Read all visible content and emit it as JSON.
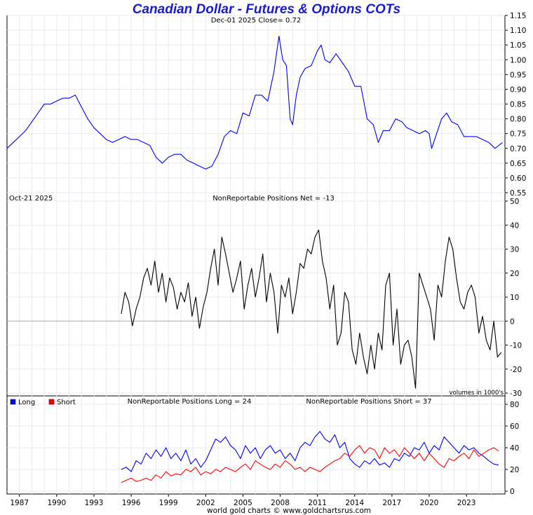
{
  "title": "Canadian Dollar - Futures & Options COTs",
  "footer": "world gold charts © www.goldchartsrus.com",
  "colors": {
    "title": "#1a1ad6",
    "price": "#0000ff",
    "net": "#000000",
    "long": "#0000ff",
    "short": "#ff0000",
    "grid": "#e6eaf0"
  },
  "x_axis_labels": [
    "1987",
    "1990",
    "1993",
    "1996",
    "1999",
    "2002",
    "2005",
    "2008",
    "2011",
    "2014",
    "2017",
    "2020",
    "2023"
  ],
  "chart_data": [
    {
      "type": "line",
      "panel": "price",
      "header": "Dec-01  2025   Close= 0.72",
      "ylim": [
        0.55,
        1.15
      ],
      "yticks": [
        "1.15",
        "1.10",
        "1.05",
        "1.00",
        "0.95",
        "0.90",
        "0.85",
        "0.80",
        "0.75",
        "0.70",
        "0.65",
        "0.60",
        "0.55"
      ],
      "series": [
        {
          "x": [
            1986.0,
            1986.5,
            1987.0,
            1987.5,
            1988.0,
            1988.5,
            1989.0,
            1989.5,
            1990.0,
            1990.5,
            1991.0,
            1991.5,
            1992.0,
            1992.5,
            1993.0,
            1993.5,
            1994.0,
            1994.5,
            1995.0,
            1995.5,
            1996.0,
            1996.5,
            1997.0,
            1997.5,
            1998.0,
            1998.5,
            1999.0,
            1999.5,
            2000.0,
            2000.5,
            2001.0,
            2001.5,
            2002.0,
            2002.5,
            2003.0,
            2003.5,
            2004.0,
            2004.5,
            2005.0,
            2005.5,
            2006.0,
            2006.5,
            2007.0,
            2007.5,
            2007.9,
            2008.2,
            2008.5,
            2008.8,
            2009.0,
            2009.3,
            2009.6,
            2010.0,
            2010.5,
            2011.0,
            2011.3,
            2011.6,
            2012.0,
            2012.5,
            2013.0,
            2013.5,
            2014.0,
            2014.5,
            2015.0,
            2015.5,
            2015.9,
            2016.3,
            2016.8,
            2017.3,
            2017.8,
            2018.2,
            2018.7,
            2019.2,
            2019.7,
            2020.0,
            2020.2,
            2020.6,
            2021.0,
            2021.4,
            2021.8,
            2022.3,
            2022.8,
            2023.3,
            2023.8,
            2024.3,
            2024.8,
            2025.3,
            2025.9
          ],
          "values": [
            0.7,
            0.72,
            0.74,
            0.76,
            0.79,
            0.82,
            0.85,
            0.85,
            0.86,
            0.87,
            0.87,
            0.88,
            0.84,
            0.8,
            0.77,
            0.75,
            0.73,
            0.72,
            0.73,
            0.74,
            0.73,
            0.73,
            0.72,
            0.71,
            0.67,
            0.65,
            0.67,
            0.68,
            0.68,
            0.66,
            0.65,
            0.64,
            0.63,
            0.64,
            0.68,
            0.74,
            0.76,
            0.75,
            0.82,
            0.81,
            0.88,
            0.88,
            0.86,
            0.96,
            1.08,
            1.0,
            0.98,
            0.8,
            0.78,
            0.88,
            0.94,
            0.97,
            0.98,
            1.03,
            1.05,
            1.0,
            0.99,
            1.02,
            0.99,
            0.96,
            0.91,
            0.91,
            0.8,
            0.78,
            0.72,
            0.76,
            0.76,
            0.8,
            0.79,
            0.77,
            0.76,
            0.75,
            0.76,
            0.75,
            0.7,
            0.75,
            0.8,
            0.82,
            0.79,
            0.78,
            0.74,
            0.74,
            0.74,
            0.73,
            0.72,
            0.7,
            0.72
          ],
          "color": "#0000ff"
        }
      ]
    },
    {
      "type": "line",
      "panel": "net",
      "header_left": "Oct-21  2025",
      "header_center": "NonReportable Positions Net = -13",
      "note": "volumes in 1000's",
      "ylim": [
        -30,
        50
      ],
      "yticks": [
        "50",
        "40",
        "30",
        "20",
        "10",
        "0",
        "-10",
        "-20",
        "-30"
      ],
      "series": [
        {
          "x": [
            1995.2,
            1995.5,
            1995.8,
            1996.1,
            1996.4,
            1996.7,
            1997.0,
            1997.3,
            1997.6,
            1997.9,
            1998.2,
            1998.5,
            1998.8,
            1999.1,
            1999.4,
            1999.7,
            2000.0,
            2000.3,
            2000.6,
            2000.9,
            2001.2,
            2001.5,
            2001.8,
            2002.1,
            2002.4,
            2002.7,
            2003.0,
            2003.3,
            2003.6,
            2003.9,
            2004.2,
            2004.5,
            2004.8,
            2005.1,
            2005.4,
            2005.7,
            2006.0,
            2006.3,
            2006.6,
            2006.9,
            2007.2,
            2007.5,
            2007.8,
            2008.1,
            2008.4,
            2008.7,
            2009.0,
            2009.3,
            2009.6,
            2009.9,
            2010.2,
            2010.5,
            2010.8,
            2011.1,
            2011.4,
            2011.7,
            2012.0,
            2012.3,
            2012.6,
            2012.9,
            2013.2,
            2013.5,
            2013.8,
            2014.1,
            2014.4,
            2014.7,
            2015.0,
            2015.3,
            2015.6,
            2015.9,
            2016.2,
            2016.5,
            2016.8,
            2017.1,
            2017.4,
            2017.7,
            2018.0,
            2018.3,
            2018.6,
            2018.9,
            2019.2,
            2019.5,
            2019.8,
            2020.1,
            2020.4,
            2020.7,
            2021.0,
            2021.3,
            2021.6,
            2021.9,
            2022.2,
            2022.5,
            2022.8,
            2023.1,
            2023.4,
            2023.7,
            2024.0,
            2024.3,
            2024.6,
            2024.9,
            2025.2,
            2025.5,
            2025.8
          ],
          "values": [
            3,
            12,
            8,
            -2,
            5,
            10,
            18,
            22,
            15,
            25,
            12,
            20,
            8,
            18,
            14,
            5,
            12,
            8,
            16,
            2,
            10,
            -3,
            6,
            12,
            22,
            30,
            15,
            35,
            28,
            20,
            12,
            18,
            25,
            5,
            15,
            22,
            10,
            18,
            28,
            8,
            20,
            12,
            -5,
            15,
            10,
            18,
            3,
            12,
            24,
            22,
            30,
            28,
            35,
            38,
            25,
            18,
            5,
            15,
            -10,
            -5,
            12,
            8,
            -12,
            -18,
            -5,
            -15,
            -22,
            -10,
            -20,
            -5,
            -12,
            15,
            20,
            -10,
            5,
            -18,
            -10,
            -8,
            -15,
            -28,
            20,
            15,
            10,
            5,
            -8,
            15,
            10,
            25,
            35,
            30,
            18,
            8,
            5,
            12,
            15,
            10,
            -5,
            2,
            -8,
            -12,
            0,
            -15,
            -13
          ]
        }
      ]
    },
    {
      "type": "line",
      "panel": "long_short",
      "legend": [
        "Long",
        "Short"
      ],
      "header_long": "NonReportable Positions Long = 24",
      "header_short": "NonReportable Positions Short = 37",
      "ylim": [
        0,
        80
      ],
      "yticks": [
        "80",
        "60",
        "40",
        "20",
        "0"
      ],
      "series": [
        {
          "name": "Long",
          "x": [
            1995.2,
            1995.6,
            1996.0,
            1996.4,
            1996.8,
            1997.2,
            1997.6,
            1998.0,
            1998.4,
            1998.8,
            1999.2,
            1999.6,
            2000.0,
            2000.4,
            2000.8,
            2001.2,
            2001.6,
            2002.0,
            2002.4,
            2002.8,
            2003.2,
            2003.6,
            2004.0,
            2004.4,
            2004.8,
            2005.2,
            2005.6,
            2006.0,
            2006.4,
            2006.8,
            2007.2,
            2007.6,
            2008.0,
            2008.4,
            2008.8,
            2009.2,
            2009.6,
            2010.0,
            2010.4,
            2010.8,
            2011.2,
            2011.6,
            2012.0,
            2012.4,
            2012.8,
            2013.2,
            2013.6,
            2014.0,
            2014.4,
            2014.8,
            2015.2,
            2015.6,
            2016.0,
            2016.4,
            2016.8,
            2017.2,
            2017.6,
            2018.0,
            2018.4,
            2018.8,
            2019.2,
            2019.6,
            2020.0,
            2020.4,
            2020.8,
            2021.2,
            2021.6,
            2022.0,
            2022.4,
            2022.8,
            2023.2,
            2023.6,
            2024.0,
            2024.4,
            2024.8,
            2025.2,
            2025.6
          ],
          "values": [
            20,
            22,
            18,
            28,
            25,
            35,
            30,
            38,
            32,
            40,
            30,
            35,
            28,
            38,
            25,
            30,
            22,
            28,
            38,
            48,
            45,
            50,
            42,
            38,
            30,
            42,
            35,
            40,
            30,
            38,
            42,
            35,
            38,
            30,
            35,
            28,
            40,
            45,
            42,
            50,
            55,
            48,
            45,
            52,
            40,
            45,
            30,
            25,
            22,
            28,
            25,
            30,
            24,
            26,
            22,
            30,
            28,
            35,
            32,
            40,
            38,
            45,
            35,
            42,
            38,
            50,
            45,
            40,
            35,
            42,
            38,
            40,
            35,
            32,
            28,
            25,
            24
          ]
        },
        {
          "name": "Short",
          "x": [
            1995.2,
            1995.6,
            1996.0,
            1996.4,
            1996.8,
            1997.2,
            1997.6,
            1998.0,
            1998.4,
            1998.8,
            1999.2,
            1999.6,
            2000.0,
            2000.4,
            2000.8,
            2001.2,
            2001.6,
            2002.0,
            2002.4,
            2002.8,
            2003.2,
            2003.6,
            2004.0,
            2004.4,
            2004.8,
            2005.2,
            2005.6,
            2006.0,
            2006.4,
            2006.8,
            2007.2,
            2007.6,
            2008.0,
            2008.4,
            2008.8,
            2009.2,
            2009.6,
            2010.0,
            2010.4,
            2010.8,
            2011.2,
            2011.6,
            2012.0,
            2012.4,
            2012.8,
            2013.2,
            2013.6,
            2014.0,
            2014.4,
            2014.8,
            2015.2,
            2015.6,
            2016.0,
            2016.4,
            2016.8,
            2017.2,
            2017.6,
            2018.0,
            2018.4,
            2018.8,
            2019.2,
            2019.6,
            2020.0,
            2020.4,
            2020.8,
            2021.2,
            2021.6,
            2022.0,
            2022.4,
            2022.8,
            2023.2,
            2023.6,
            2024.0,
            2024.4,
            2024.8,
            2025.2,
            2025.6
          ],
          "values": [
            8,
            10,
            12,
            9,
            10,
            12,
            10,
            15,
            12,
            18,
            14,
            16,
            15,
            20,
            18,
            22,
            15,
            18,
            16,
            20,
            18,
            22,
            20,
            18,
            22,
            25,
            20,
            28,
            25,
            22,
            20,
            25,
            22,
            28,
            25,
            20,
            22,
            18,
            22,
            20,
            18,
            22,
            25,
            28,
            30,
            35,
            32,
            38,
            42,
            35,
            40,
            38,
            30,
            40,
            35,
            38,
            32,
            40,
            35,
            30,
            35,
            28,
            35,
            30,
            25,
            22,
            30,
            28,
            32,
            35,
            30,
            38,
            32,
            35,
            38,
            40,
            37
          ]
        }
      ]
    }
  ]
}
